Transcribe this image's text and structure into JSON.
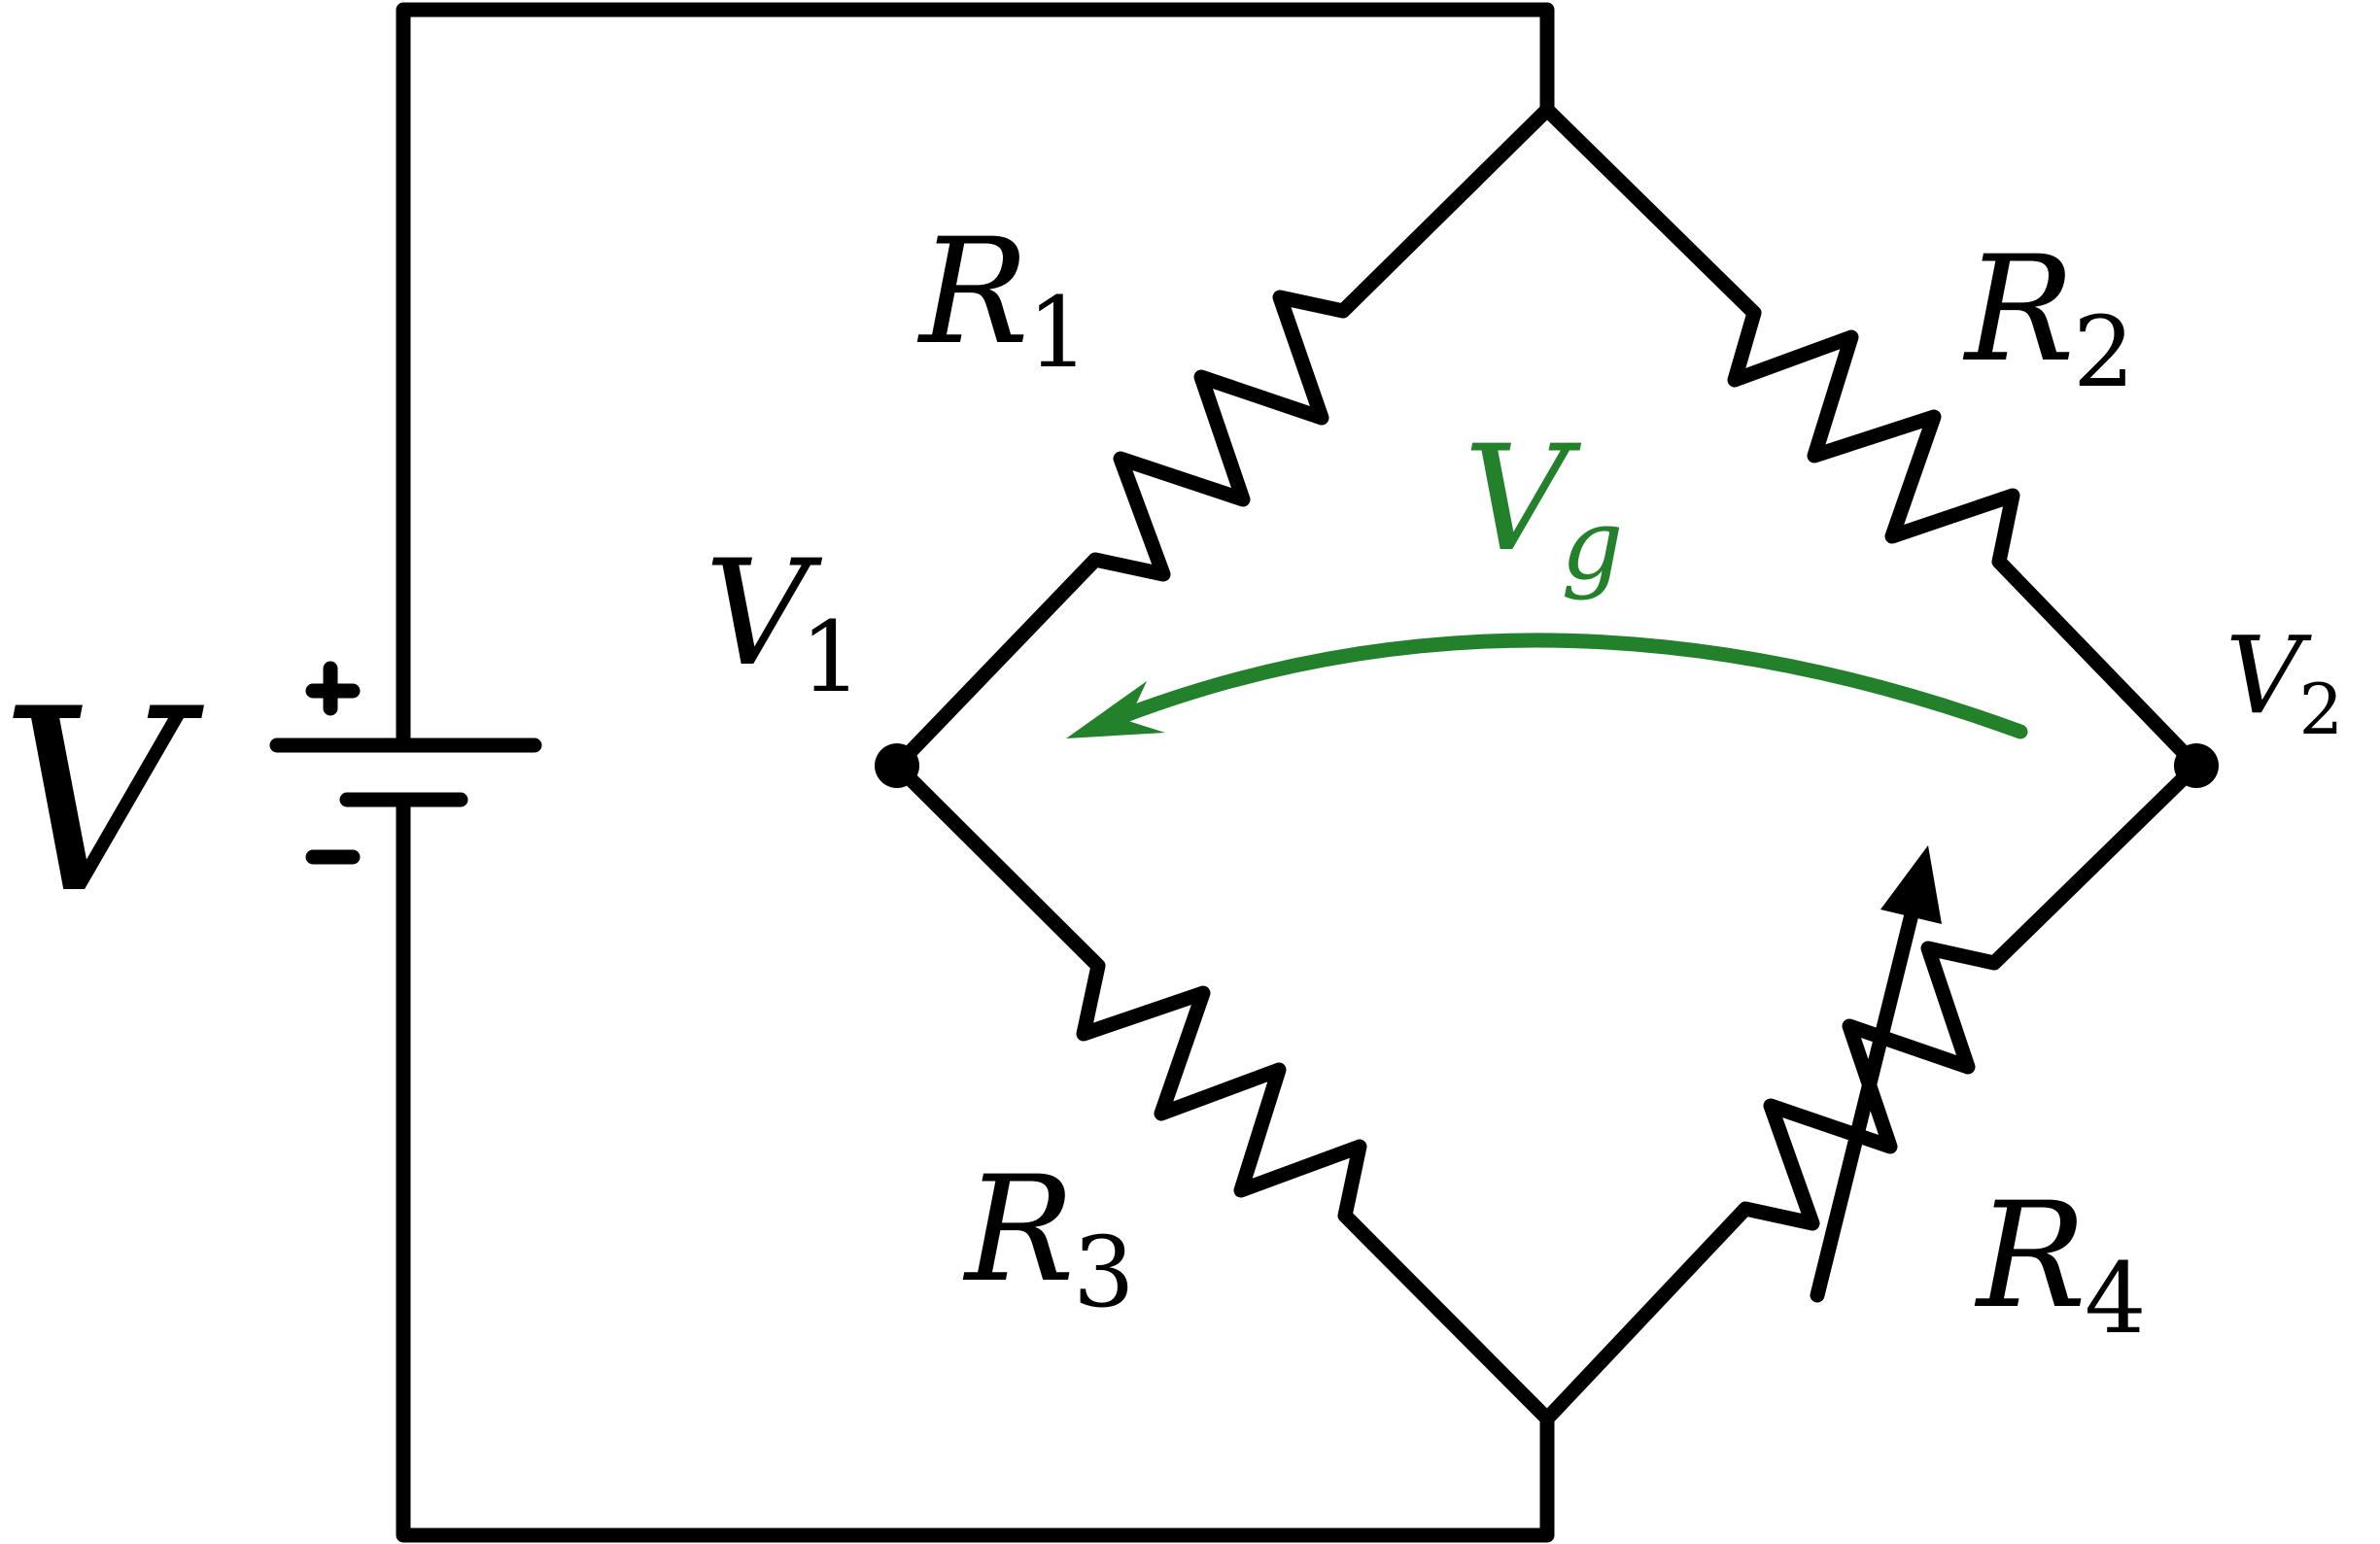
{
  "labels": {
    "source": {
      "main": "V",
      "sub": ""
    },
    "plus": "+",
    "minus": "-",
    "v1": {
      "main": "V",
      "sub": "1"
    },
    "v2": {
      "main": "V",
      "sub": "2"
    },
    "vg": {
      "main": "V",
      "sub": "g"
    },
    "r1": {
      "main": "R",
      "sub": "1"
    },
    "r2": {
      "main": "R",
      "sub": "2"
    },
    "r3": {
      "main": "R",
      "sub": "3"
    },
    "r4": {
      "main": "R",
      "sub": "4"
    }
  },
  "colors": {
    "wire": "#000000",
    "vg_arrow": "#23802b",
    "background": "#ffffff"
  }
}
